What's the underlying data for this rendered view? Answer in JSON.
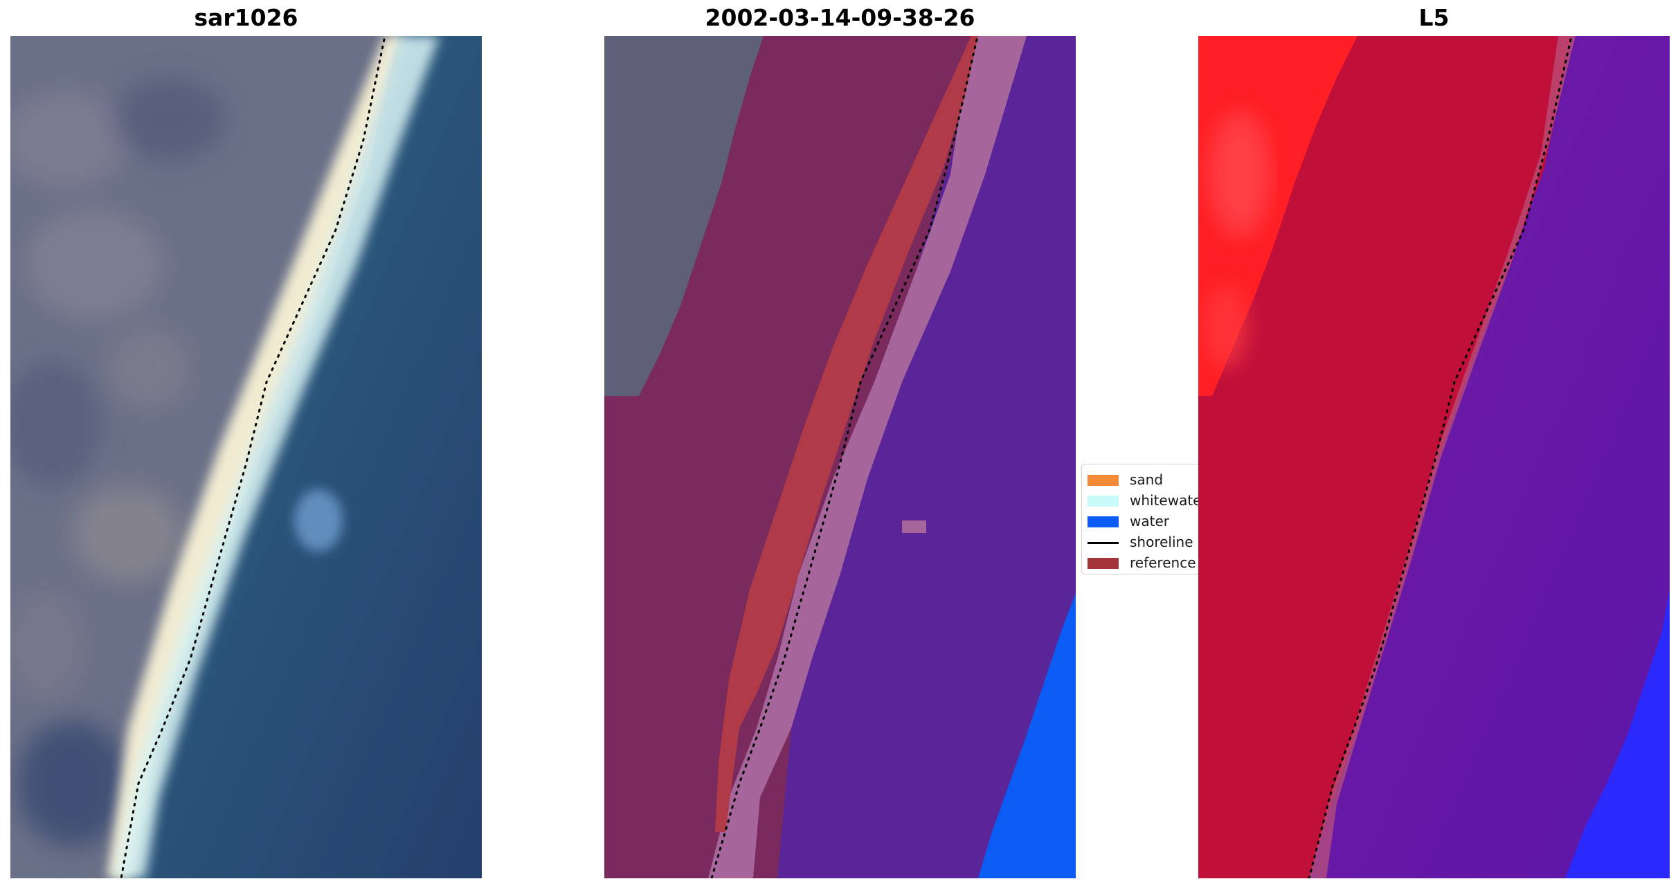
{
  "panels": {
    "rgb": {
      "title": "sar1026"
    },
    "classified": {
      "title": "2002-03-14-09-38-26"
    },
    "index": {
      "title": "L5"
    }
  },
  "legend": {
    "items": [
      {
        "label": "sand",
        "kind": "swatch",
        "color": "#f28a38"
      },
      {
        "label": "whitewater",
        "kind": "swatch",
        "color": "#c8fbfa"
      },
      {
        "label": "water",
        "kind": "swatch",
        "color": "#0a5cf5"
      },
      {
        "label": "shoreline",
        "kind": "line",
        "color": "#000000"
      },
      {
        "label": "reference",
        "kind": "swatch",
        "color": "#a2333a"
      }
    ]
  },
  "colors": {
    "land_rgb": "#6b7188",
    "beach_rgb": "#e9e3c6",
    "surf_rgb": "#dff7f5",
    "sea_rgb": "#2d5d86",
    "land_classified": "#7a2a5c",
    "reference_band": "#b03a48",
    "buffer_band": "#a8689a",
    "water_classified": "#5a259a",
    "water_bright": "#0a5cf5",
    "index_high": "#c0103a",
    "index_max": "#ff1a1f",
    "index_low": "#6a1aa8",
    "index_min": "#1a1aff",
    "shoreline": "#000000"
  }
}
